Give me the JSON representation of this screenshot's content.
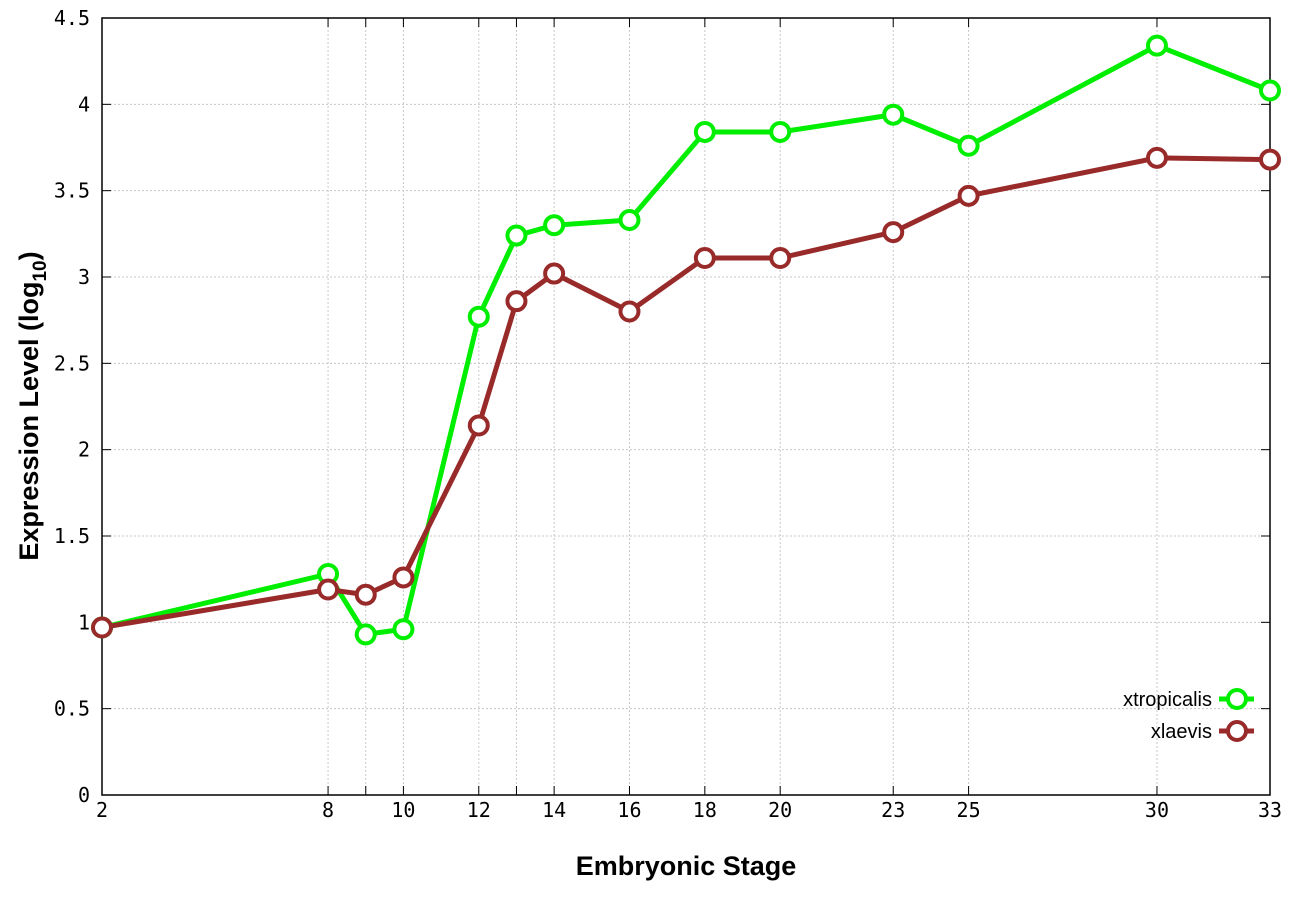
{
  "chart_data": {
    "type": "line",
    "xlabel": "Embryonic Stage",
    "ylabel_main": "Expression Level (log",
    "ylabel_sub": "10",
    "ylabel_close": ")",
    "xlim": [
      2,
      33
    ],
    "ylim": [
      0,
      4.5
    ],
    "x_categories": [
      "2",
      "8",
      "9",
      "10",
      "12",
      "13",
      "14",
      "16",
      "18",
      "20",
      "23",
      "25",
      "30",
      "33"
    ],
    "x_tick_labels": [
      "2",
      "8",
      "10",
      "12",
      "14",
      "16",
      "18",
      "20",
      "23",
      "25",
      "30",
      "33"
    ],
    "y_ticks": [
      0,
      0.5,
      1,
      1.5,
      2,
      2.5,
      3,
      3.5,
      4,
      4.5
    ],
    "y_tick_labels": [
      "0",
      "0.5",
      "1",
      "1.5",
      "2",
      "2.5",
      "3",
      "3.5",
      "4",
      "4.5"
    ],
    "grid": true,
    "legend_position": "bottom-right",
    "series": [
      {
        "name": "xtropicalis",
        "color": "#00ee00",
        "values": [
          0.97,
          1.28,
          0.93,
          0.96,
          2.77,
          3.24,
          3.3,
          3.33,
          3.84,
          3.84,
          3.94,
          3.76,
          4.34,
          4.08
        ]
      },
      {
        "name": "xlaevis",
        "color": "#992a2a",
        "values": [
          0.97,
          1.19,
          1.16,
          1.26,
          2.14,
          2.86,
          3.02,
          2.8,
          3.11,
          3.11,
          3.26,
          3.47,
          3.69,
          3.68
        ]
      }
    ]
  }
}
